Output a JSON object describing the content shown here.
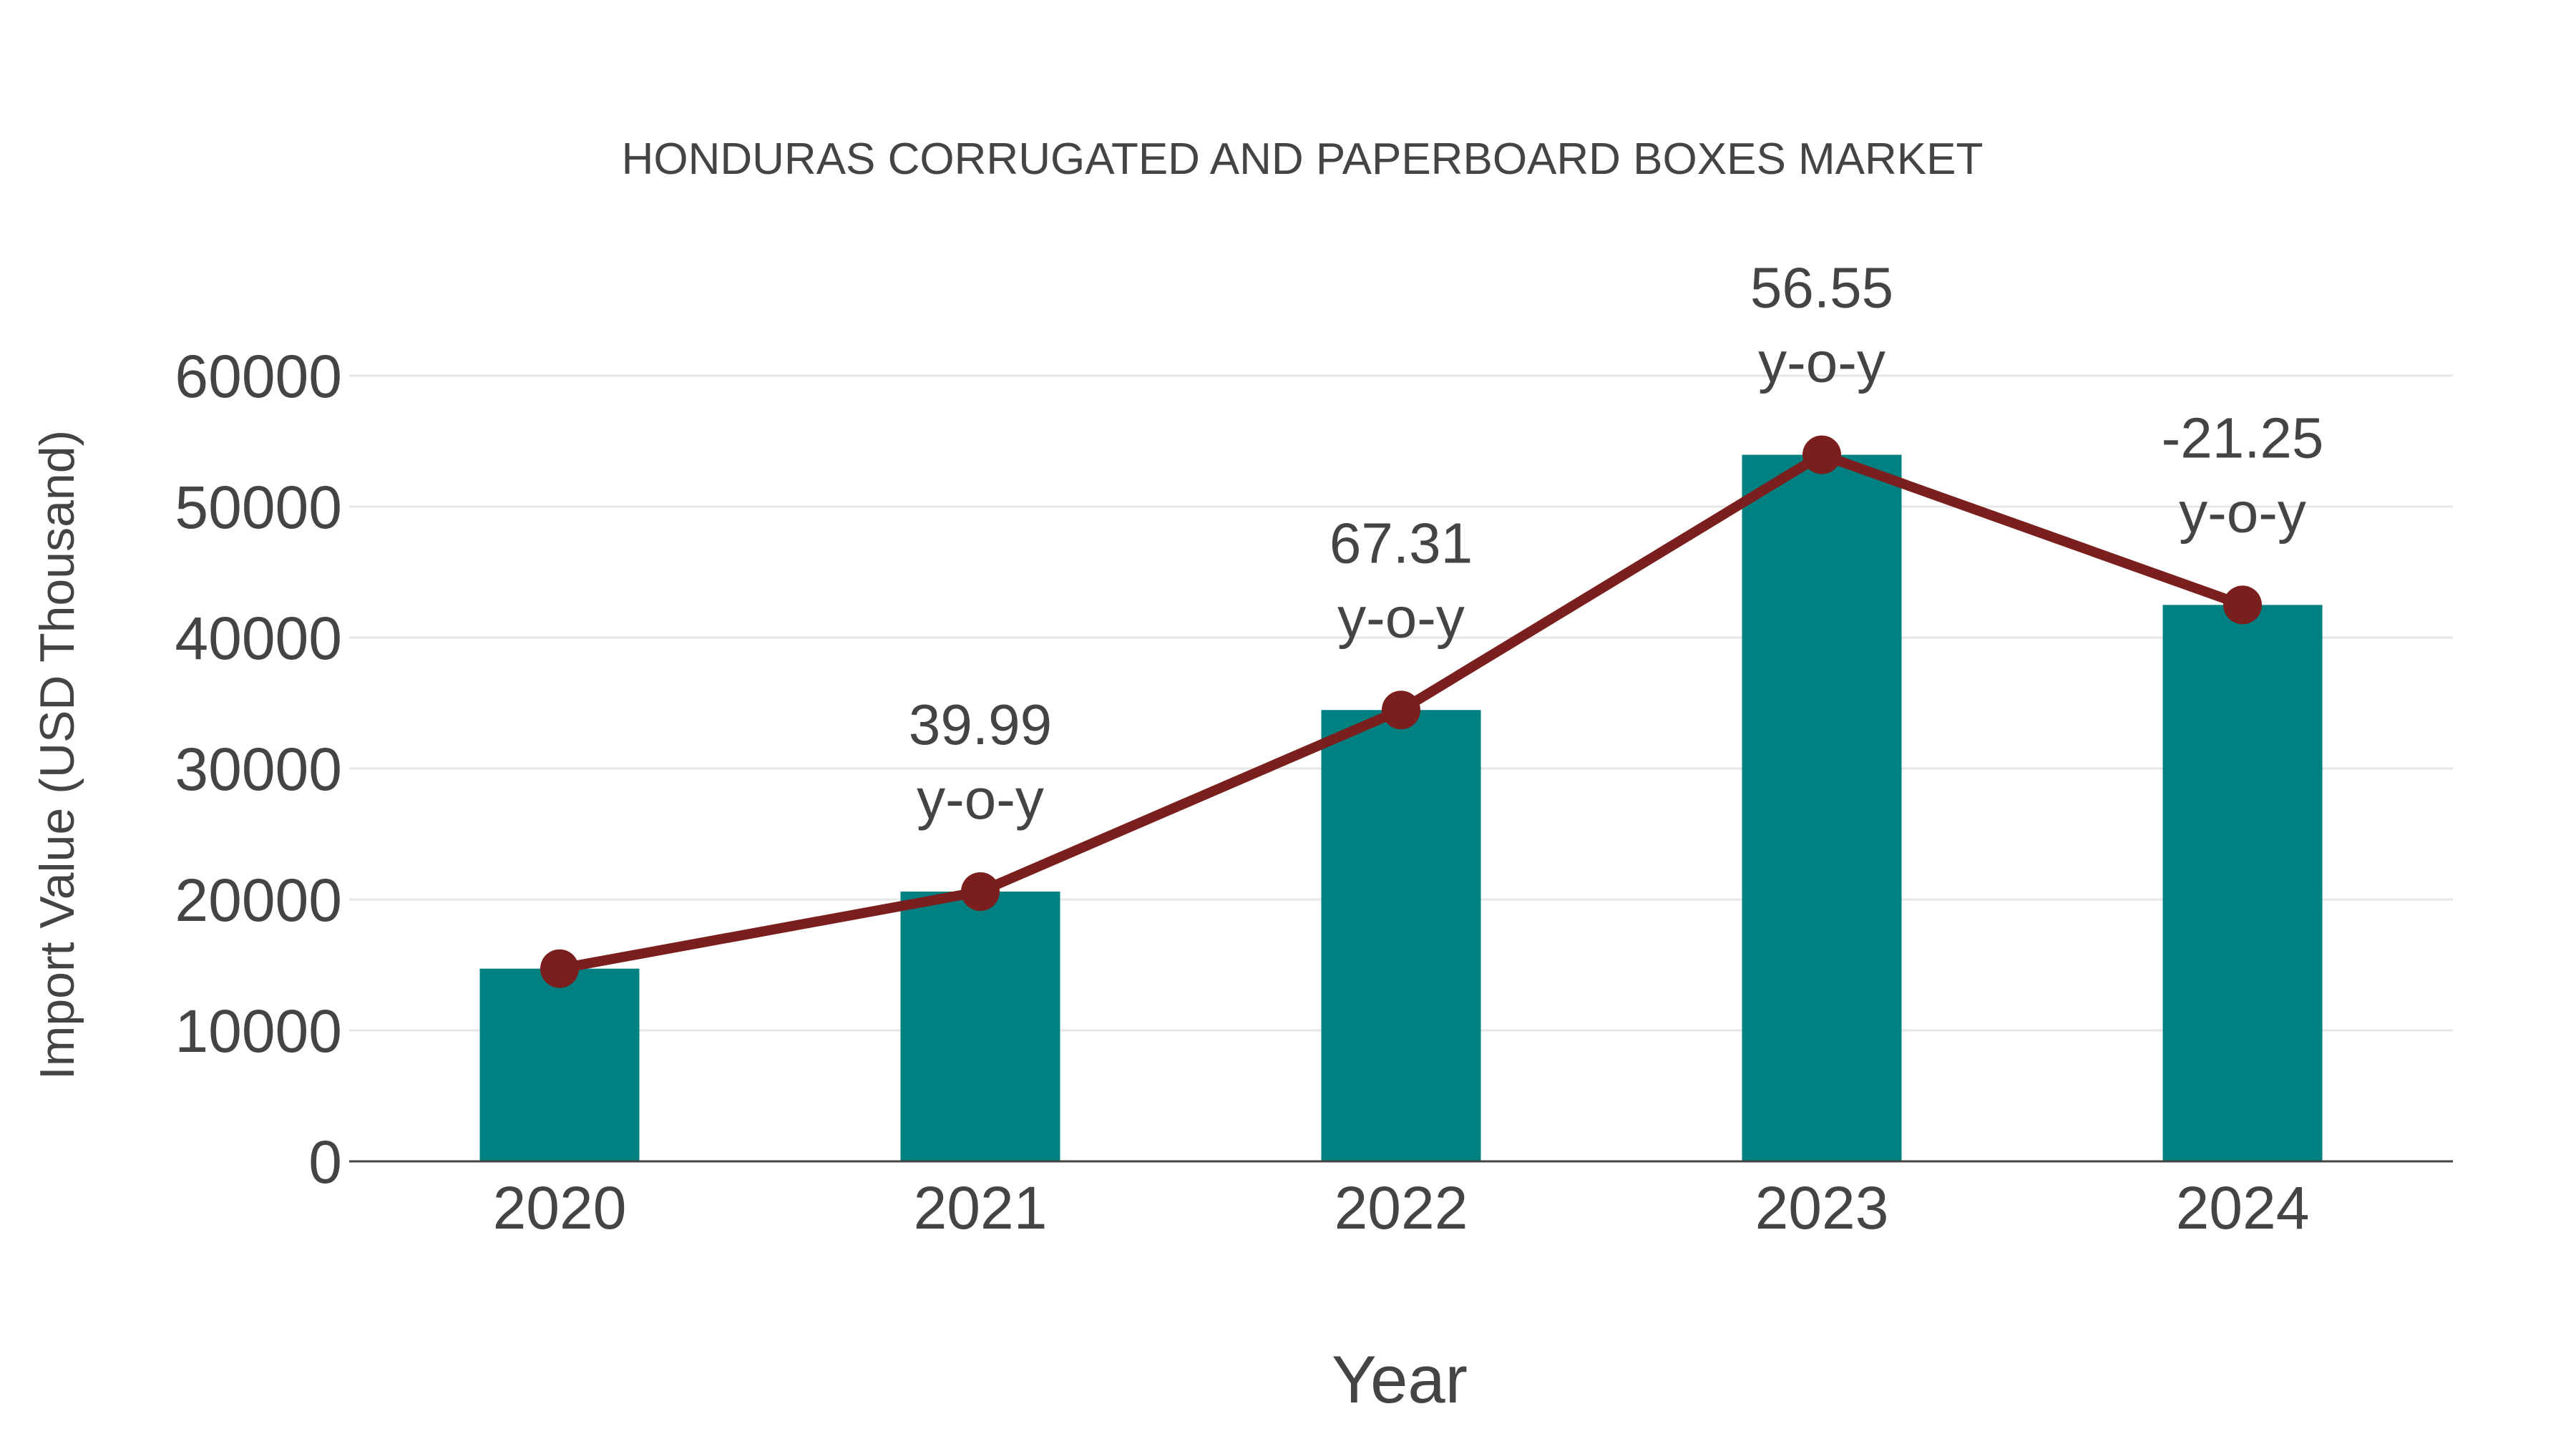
{
  "chart_data": {
    "type": "bar+line",
    "title": "HONDURAS CORRUGATED AND PAPERBOARD BOXES MARKET",
    "xlabel": "Year",
    "ylabel": "Import Value (USD Thousand)",
    "categories": [
      "2020",
      "2021",
      "2022",
      "2023",
      "2024"
    ],
    "series": [
      {
        "name": "Import Value (bar)",
        "type": "bar",
        "color": "#008080",
        "values": [
          14716,
          20601,
          34467,
          53958,
          42492
        ]
      },
      {
        "name": "Import Value (line)",
        "type": "line",
        "color": "#7b1e1e",
        "values": [
          14716,
          20601,
          34467,
          53958,
          42492
        ]
      }
    ],
    "annotations": [
      {
        "x": "2021",
        "value": "39.99",
        "suffix": "y-o-y"
      },
      {
        "x": "2022",
        "value": "67.31",
        "suffix": "y-o-y"
      },
      {
        "x": "2023",
        "value": "56.55",
        "suffix": "y-o-y"
      },
      {
        "x": "2024",
        "value": "-21.25",
        "suffix": "y-o-y"
      }
    ],
    "yticks": [
      0,
      10000,
      20000,
      30000,
      40000,
      50000,
      60000
    ],
    "ylim": [
      0,
      60000
    ],
    "grid": true,
    "legend": "none"
  }
}
